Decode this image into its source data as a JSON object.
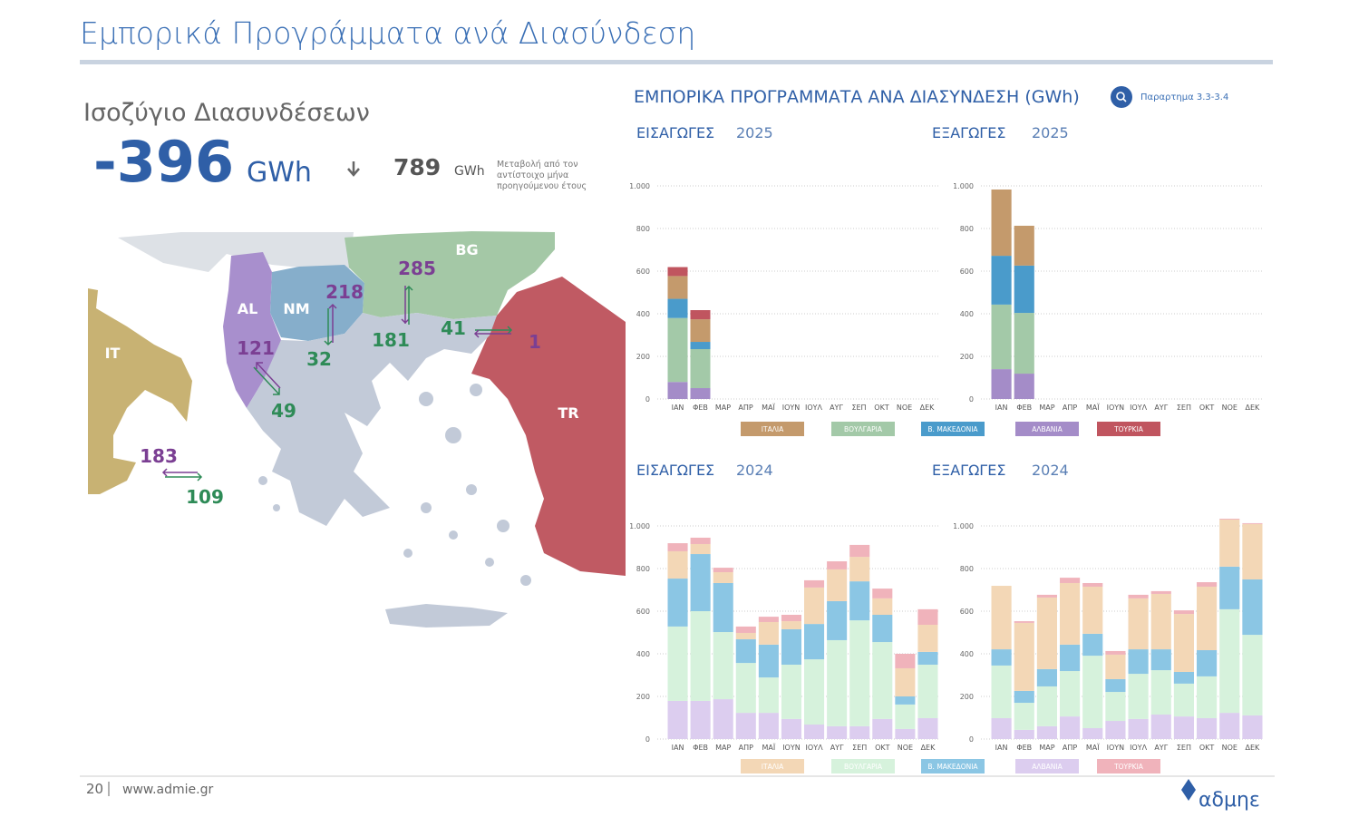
{
  "header": {
    "title": "Εμπορικά Προγράμματα ανά Διασύνδεση",
    "subtitle": "Ισοζύγιο Διασυνδέσεων",
    "balance": "-396",
    "balance_unit": "GWh",
    "change": "789",
    "change_unit": "GWh",
    "change_note": [
      "Μεταβολή από τον",
      "αντίστοιχο μήνα",
      "προηγούμενου έτους"
    ]
  },
  "section": {
    "title": "ΕΜΠΟΡΙΚΑ ΠΡΟΓΡΑΜΜΑΤΑ ΑΝΑ ΔΙΑΣΥΝΔΕΣΗ (GWh)",
    "link": "Παραρτημα 3.3-3.4"
  },
  "map": {
    "countries": [
      {
        "label": "AL"
      },
      {
        "label": "NM"
      },
      {
        "label": "BG"
      },
      {
        "label": "IT"
      },
      {
        "label": "TR"
      }
    ],
    "flows": [
      {
        "label": "218",
        "color": "#7b3f93"
      },
      {
        "label": "32",
        "color": "#2e8b57"
      },
      {
        "label": "285",
        "color": "#7b3f93"
      },
      {
        "label": "181",
        "color": "#2e8b57"
      },
      {
        "label": "41",
        "color": "#2e8b57"
      },
      {
        "label": "1",
        "color": "#7b3f93"
      },
      {
        "label": "121",
        "color": "#7b3f93"
      },
      {
        "label": "49",
        "color": "#2e8b57"
      },
      {
        "label": "183",
        "color": "#7b3f93"
      },
      {
        "label": "109",
        "color": "#2e8b57"
      }
    ]
  },
  "chart_data": [
    {
      "type": "stacked_bar",
      "title": "ΕΙΣΑΓΩΓΕΣ",
      "subtitle": "2025",
      "categories": [
        "ΙΑΝ",
        "ΦΕΒ",
        "ΜΑΡ",
        "ΑΠΡ",
        "ΜΑΪ",
        "ΙΟΥΝ",
        "ΙΟΥΛ",
        "ΑΥΓ",
        "ΣΕΠ",
        "ΟΚΤ",
        "ΝΟΕ",
        "ΔΕΚ"
      ],
      "ylim": [
        0,
        1000
      ],
      "yticks": [
        0,
        200,
        400,
        600,
        800,
        {
          "value": 1000,
          "label": "1.000"
        }
      ],
      "grid": true,
      "series": [
        {
          "name": "ΑΛΒΑΝΙΑ",
          "color": "#a48cc8",
          "values": [
            80,
            51,
            null,
            null,
            null,
            null,
            null,
            null,
            null,
            null,
            null,
            null
          ]
        },
        {
          "name": "ΒΟΥΛΓΑΡΙΑ",
          "color": "#a3c9a8",
          "values": [
            300,
            183,
            null,
            null,
            null,
            null,
            null,
            null,
            null,
            null,
            null,
            null
          ]
        },
        {
          "name": "Β. ΜΑΚΕΔΟΝΙΑ",
          "color": "#4a9bcb",
          "values": [
            90,
            34,
            null,
            null,
            null,
            null,
            null,
            null,
            null,
            null,
            null,
            null
          ]
        },
        {
          "name": "ΙΤΑΛΙΑ",
          "color": "#c49a6c",
          "values": [
            107,
            106,
            null,
            null,
            null,
            null,
            null,
            null,
            null,
            null,
            null,
            null
          ]
        },
        {
          "name": "ΤΟΥΡΚΙΑ",
          "color": "#c0555f",
          "values": [
            42,
            43,
            null,
            null,
            null,
            null,
            null,
            null,
            null,
            null,
            null,
            null
          ]
        }
      ]
    },
    {
      "type": "stacked_bar",
      "title": "ΕΞΑΓΩΓΕΣ",
      "subtitle": "2025",
      "categories": [
        "ΙΑΝ",
        "ΦΕΒ",
        "ΜΑΡ",
        "ΑΠΡ",
        "ΜΑΪ",
        "ΙΟΥΝ",
        "ΙΟΥΛ",
        "ΑΥΓ",
        "ΣΕΠ",
        "ΟΚΤ",
        "ΝΟΕ",
        "ΔΕΚ"
      ],
      "ylim": [
        0,
        1000
      ],
      "yticks": [
        0,
        200,
        400,
        600,
        800,
        {
          "value": 1000,
          "label": "1.000"
        }
      ],
      "grid": true,
      "series": [
        {
          "color": "#a48cc8",
          "values": [
            140,
            119,
            null,
            null,
            null,
            null,
            null,
            null,
            null,
            null,
            null,
            null
          ]
        },
        {
          "color": "#a3c9a8",
          "values": [
            303,
            285,
            null,
            null,
            null,
            null,
            null,
            null,
            null,
            null,
            null,
            null
          ]
        },
        {
          "color": "#4a9bcb",
          "values": [
            229,
            222,
            null,
            null,
            null,
            null,
            null,
            null,
            null,
            null,
            null,
            null
          ]
        },
        {
          "color": "#c49a6c",
          "values": [
            311,
            187,
            null,
            null,
            null,
            null,
            null,
            null,
            null,
            null,
            null,
            null
          ]
        },
        {
          "color": "#c0555f",
          "values": [
            0,
            0,
            null,
            null,
            null,
            null,
            null,
            null,
            null,
            null,
            null,
            null
          ]
        }
      ]
    },
    {
      "type": "stacked_bar",
      "title": "ΕΙΣΑΓΩΓΕΣ",
      "subtitle": "2024",
      "categories": [
        "ΙΑΝ",
        "ΦΕΒ",
        "ΜΑΡ",
        "ΑΠΡ",
        "ΜΑΪ",
        "ΙΟΥΝ",
        "ΙΟΥΛ",
        "ΑΥΓ",
        "ΣΕΠ",
        "ΟΚΤ",
        "ΝΟΕ",
        "ΔΕΚ"
      ],
      "ylim": [
        0,
        1000
      ],
      "yticks": [
        0,
        200,
        400,
        600,
        800,
        {
          "value": 1000,
          "label": "1.000"
        }
      ],
      "grid": true,
      "series": [
        {
          "name": "ΑΛΒΑΝΙΑ",
          "color": "#dccdef",
          "values": [
            179,
            179,
            187,
            123,
            123,
            94,
            68,
            60,
            60,
            94,
            47,
            98
          ]
        },
        {
          "name": "ΒΟΥΛΓΑΡΙΑ",
          "color": "#d6f2dc",
          "values": [
            349,
            421,
            315,
            234,
            166,
            255,
            306,
            404,
            497,
            361,
            115,
            251
          ]
        },
        {
          "name": "Β. ΜΑΚΕΔΟΝΙΑ",
          "color": "#8bc6e4",
          "values": [
            225,
            268,
            230,
            111,
            154,
            166,
            166,
            183,
            183,
            128,
            38,
            60
          ]
        },
        {
          "name": "ΙΤΑΛΙΑ",
          "color": "#f3d7b6",
          "values": [
            128,
            47,
            51,
            30,
            106,
            38,
            171,
            149,
            115,
            77,
            132,
            127
          ]
        },
        {
          "name": "ΤΟΥΡΚΙΑ",
          "color": "#f0b3bb",
          "values": [
            38,
            30,
            21,
            30,
            25,
            30,
            34,
            38,
            56,
            46,
            68,
            73
          ]
        }
      ]
    },
    {
      "type": "stacked_bar",
      "title": "ΕΞΑΓΩΓΕΣ",
      "subtitle": "2024",
      "categories": [
        "ΙΑΝ",
        "ΦΕΒ",
        "ΜΑΡ",
        "ΑΠΡ",
        "ΜΑΪ",
        "ΙΟΥΝ",
        "ΙΟΥΛ",
        "ΑΥΓ",
        "ΣΕΠ",
        "ΟΚΤ",
        "ΝΟΕ",
        "ΔΕΚ"
      ],
      "ylim": [
        0,
        1000
      ],
      "yticks": [
        0,
        200,
        400,
        600,
        800,
        {
          "value": 1000,
          "label": "1.000"
        }
      ],
      "grid": true,
      "series": [
        {
          "color": "#dccdef",
          "values": [
            98,
            43,
            60,
            106,
            51,
            85,
            94,
            115,
            106,
            98,
            123,
            111
          ]
        },
        {
          "color": "#d6f2dc",
          "values": [
            247,
            127,
            187,
            213,
            340,
            136,
            212,
            208,
            154,
            196,
            486,
            378
          ]
        },
        {
          "color": "#8bc6e4",
          "values": [
            76,
            56,
            81,
            124,
            103,
            60,
            115,
            98,
            55,
            123,
            200,
            260
          ]
        },
        {
          "color": "#f3d7b6",
          "values": [
            298,
            319,
            336,
            289,
            221,
            115,
            239,
            260,
            272,
            298,
            221,
            260
          ]
        },
        {
          "color": "#f0b3bb",
          "values": [
            0,
            8,
            13,
            25,
            17,
            17,
            17,
            13,
            17,
            21,
            4,
            4
          ]
        }
      ]
    }
  ],
  "footer": {
    "page": "20",
    "url": "www.admie.gr",
    "logo": "αδμηε"
  }
}
